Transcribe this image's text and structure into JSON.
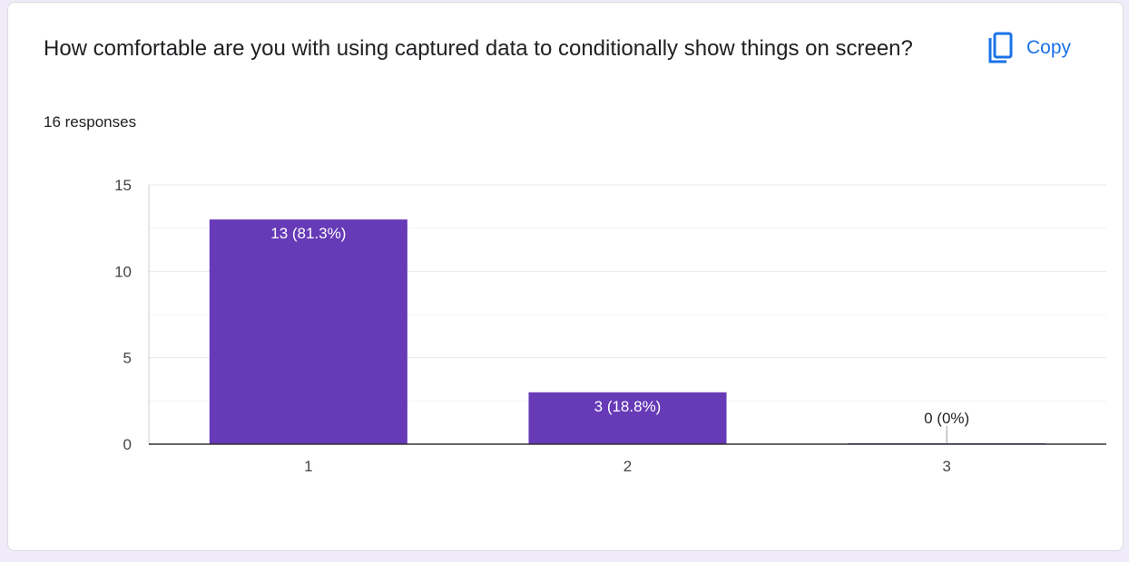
{
  "question": {
    "title": "How comfortable are you with using captured data to conditionally show things on screen?",
    "responses": "16 responses"
  },
  "copy": {
    "label": "Copy",
    "icon": "copy-icon"
  },
  "colors": {
    "bar": "#673ab7",
    "accent": "#1a73e8",
    "grid": "#e8e8e8",
    "axis": "#333333"
  },
  "chart_data": {
    "type": "bar",
    "categories": [
      "1",
      "2",
      "3"
    ],
    "values": [
      13,
      3,
      0
    ],
    "data_labels": [
      "13 (81.3%)",
      "3 (18.8%)",
      "0 (0%)"
    ],
    "yticks": [
      0,
      5,
      10,
      15
    ],
    "ylim": [
      0,
      15
    ],
    "grid": true,
    "title": "How comfortable are you with using captured data to conditionally show things on screen?"
  }
}
